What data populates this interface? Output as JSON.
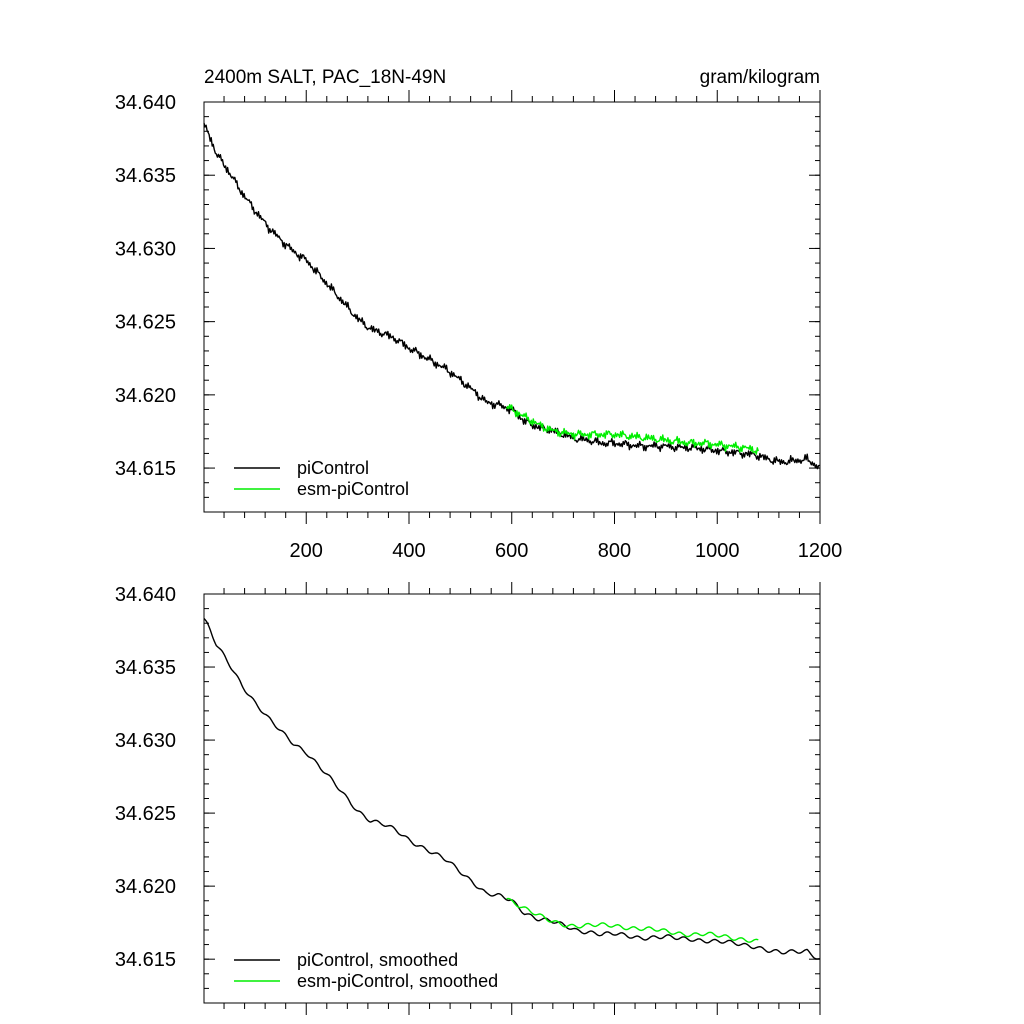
{
  "figure": {
    "title_left": "2400m SALT, PAC_18N-49N",
    "title_right": "gram/kilogram"
  },
  "chart_data": [
    {
      "type": "line",
      "title": "2400m SALT, PAC_18N-49N",
      "units": "gram/kilogram",
      "xlabel": "",
      "ylabel": "",
      "xlim": [
        1,
        1200
      ],
      "ylim": [
        34.612,
        34.64
      ],
      "xticks": [
        200,
        400,
        600,
        800,
        1000,
        1200
      ],
      "xtick_labels": [
        "200",
        "400",
        "600",
        "800",
        "1000",
        "1200"
      ],
      "yticks": [
        34.615,
        34.62,
        34.625,
        34.63,
        34.635,
        34.64
      ],
      "ytick_labels": [
        "34.615",
        "34.620",
        "34.625",
        "34.630",
        "34.635",
        "34.640"
      ],
      "grid": false,
      "legend_position": "bottom-left",
      "series": [
        {
          "name": "piControl",
          "color": "#000000",
          "x": [
            1,
            10,
            25,
            50,
            75,
            100,
            125,
            150,
            175,
            200,
            225,
            250,
            275,
            300,
            325,
            350,
            375,
            400,
            425,
            450,
            475,
            500,
            525,
            550,
            575,
            600,
            625,
            650,
            675,
            700,
            725,
            750,
            775,
            800,
            825,
            850,
            875,
            900,
            925,
            950,
            975,
            1000,
            1025,
            1050,
            1075,
            1100,
            1125,
            1150,
            1175,
            1200
          ],
          "y": [
            34.6384,
            34.6378,
            34.6365,
            34.6352,
            34.6338,
            34.6326,
            34.6315,
            34.6306,
            34.6298,
            34.6292,
            34.6282,
            34.6272,
            34.6262,
            34.6252,
            34.6245,
            34.6242,
            34.6238,
            34.6232,
            34.6227,
            34.6222,
            34.6217,
            34.621,
            34.6203,
            34.6195,
            34.6193,
            34.619,
            34.6182,
            34.6178,
            34.6176,
            34.6173,
            34.617,
            34.6169,
            34.6167,
            34.6167,
            34.6166,
            34.6165,
            34.6165,
            34.6165,
            34.6164,
            34.6164,
            34.6163,
            34.6162,
            34.6161,
            34.616,
            34.6159,
            34.6156,
            34.6154,
            34.6155,
            34.6156,
            34.615
          ]
        },
        {
          "name": "esm-piControl",
          "color": "#00ee00",
          "x": [
            590,
            625,
            650,
            675,
            700,
            725,
            750,
            775,
            800,
            825,
            850,
            875,
            900,
            925,
            950,
            975,
            1000,
            1025,
            1050,
            1080
          ],
          "y": [
            34.6192,
            34.6185,
            34.618,
            34.6176,
            34.6174,
            34.6173,
            34.6173,
            34.6173,
            34.6173,
            34.6172,
            34.6171,
            34.617,
            34.6169,
            34.6168,
            34.6167,
            34.6167,
            34.6166,
            34.6165,
            34.6164,
            34.6162
          ]
        }
      ]
    },
    {
      "type": "line",
      "title": "",
      "xlabel": "",
      "ylabel": "",
      "xlim": [
        1,
        1200
      ],
      "ylim": [
        34.612,
        34.64
      ],
      "xticks": [
        200,
        400,
        600,
        800,
        1000,
        1200
      ],
      "yticks": [
        34.615,
        34.62,
        34.625,
        34.63,
        34.635,
        34.64
      ],
      "ytick_labels": [
        "34.615",
        "34.620",
        "34.625",
        "34.630",
        "34.635",
        "34.640"
      ],
      "grid": false,
      "legend_position": "bottom-left",
      "series": [
        {
          "name": "piControl, smoothed",
          "color": "#000000",
          "x": [
            1,
            10,
            25,
            50,
            75,
            100,
            125,
            150,
            175,
            200,
            225,
            250,
            275,
            300,
            325,
            350,
            375,
            400,
            425,
            450,
            475,
            500,
            525,
            550,
            575,
            600,
            625,
            650,
            675,
            700,
            725,
            750,
            775,
            800,
            825,
            850,
            875,
            900,
            925,
            950,
            975,
            1000,
            1025,
            1050,
            1075,
            1100,
            1125,
            1150,
            1175,
            1200
          ],
          "y": [
            34.6383,
            34.6377,
            34.6365,
            34.6352,
            34.6338,
            34.6326,
            34.6315,
            34.6306,
            34.6298,
            34.6292,
            34.6282,
            34.6272,
            34.6262,
            34.6252,
            34.6245,
            34.6242,
            34.6238,
            34.6232,
            34.6227,
            34.6222,
            34.6217,
            34.621,
            34.6203,
            34.6195,
            34.6193,
            34.619,
            34.6182,
            34.6178,
            34.6176,
            34.6173,
            34.617,
            34.6169,
            34.6167,
            34.6167,
            34.6166,
            34.6165,
            34.6165,
            34.6165,
            34.6164,
            34.6164,
            34.6163,
            34.6162,
            34.6161,
            34.616,
            34.6159,
            34.6156,
            34.6154,
            34.6155,
            34.6156,
            34.615
          ]
        },
        {
          "name": "esm-piControl, smoothed",
          "color": "#00ee00",
          "x": [
            590,
            625,
            650,
            675,
            700,
            725,
            750,
            775,
            800,
            825,
            850,
            875,
            900,
            925,
            950,
            975,
            1000,
            1025,
            1050,
            1080
          ],
          "y": [
            34.6192,
            34.6185,
            34.618,
            34.6176,
            34.6174,
            34.6173,
            34.6173,
            34.6173,
            34.6173,
            34.6172,
            34.6171,
            34.617,
            34.6169,
            34.6168,
            34.6167,
            34.6167,
            34.6166,
            34.6165,
            34.6164,
            34.6162
          ]
        }
      ]
    }
  ]
}
